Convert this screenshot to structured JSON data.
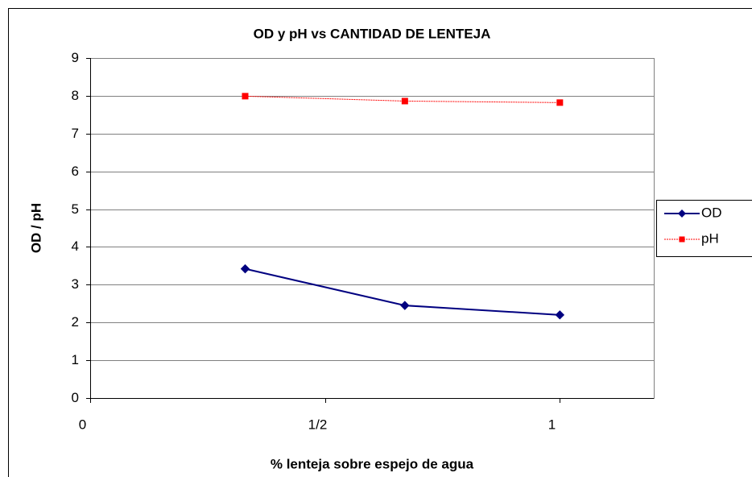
{
  "chart_data": {
    "type": "line",
    "title": "OD y pH vs CANTIDAD DE LENTEJA",
    "x_label": "% lenteja sobre espejo de agua",
    "y_label": "OD / pH",
    "x": [
      0.33,
      0.67,
      1
    ],
    "series": [
      {
        "name": "OD",
        "color": "#000080",
        "marker": "diamond",
        "dash": false,
        "values": [
          3.42,
          2.45,
          2.2
        ]
      },
      {
        "name": "pH",
        "color": "#ff0000",
        "marker": "square",
        "dash": true,
        "values": [
          7.99,
          7.86,
          7.82
        ]
      }
    ],
    "xlim": [
      0,
      1.2
    ],
    "xticks": [
      0,
      {
        "value": 0.5,
        "label": "1/2"
      },
      1
    ],
    "ylim": [
      0,
      9
    ],
    "yticks": [
      0,
      1,
      2,
      3,
      4,
      5,
      6,
      7,
      8,
      9
    ],
    "grid": true,
    "legend": "right"
  }
}
